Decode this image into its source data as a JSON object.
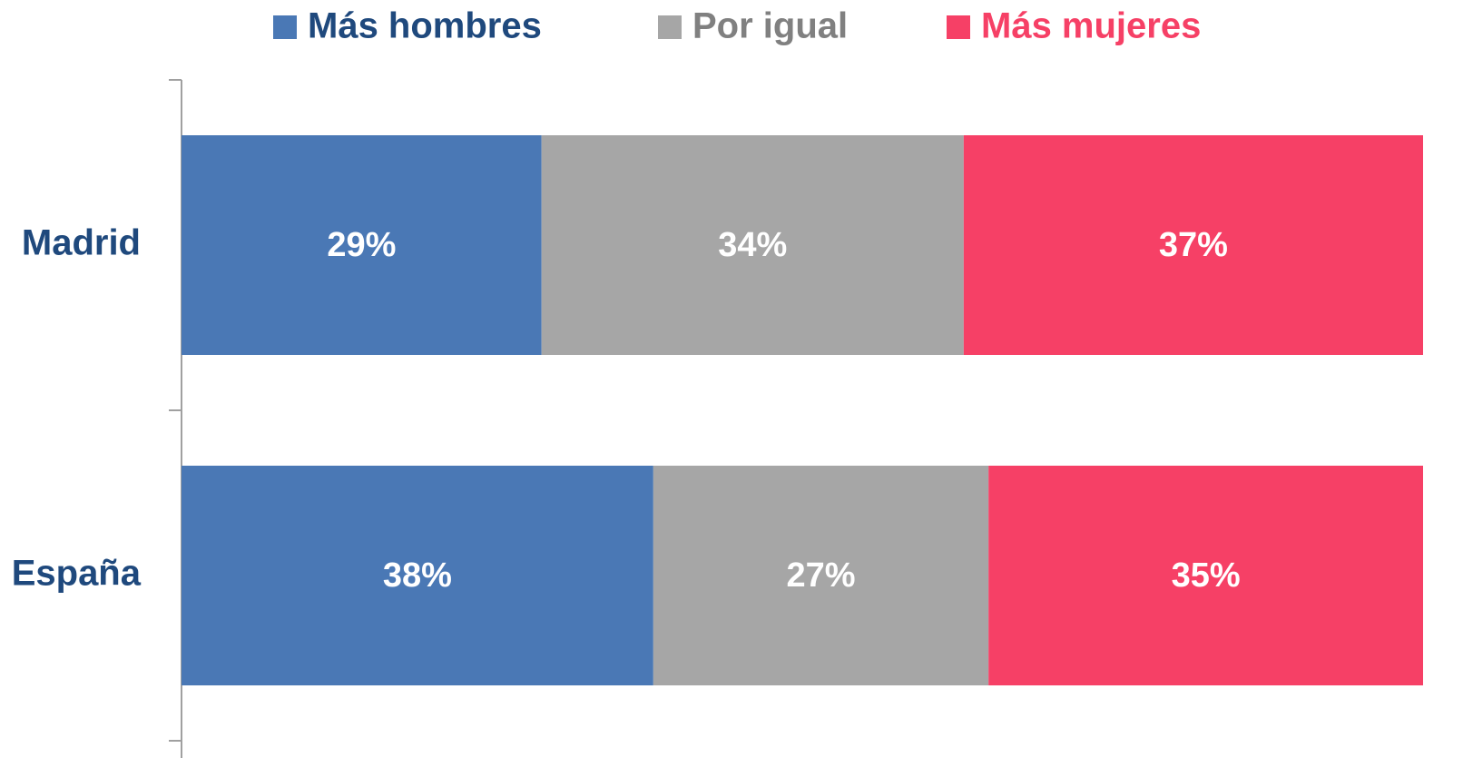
{
  "chart_data": {
    "type": "bar",
    "orientation": "horizontal",
    "stacked": true,
    "categories": [
      "Madrid",
      "España"
    ],
    "series": [
      {
        "name": "Más hombres",
        "color": "#4a78b5",
        "legend_text_color": "#1f497d",
        "values": [
          29,
          38
        ],
        "value_labels": [
          "29%",
          "38%"
        ]
      },
      {
        "name": "Por igual",
        "color": "#a6a6a6",
        "legend_text_color": "#808080",
        "values": [
          34,
          27
        ],
        "value_labels": [
          "34%",
          "27%"
        ]
      },
      {
        "name": "Más mujeres",
        "color": "#f64066",
        "legend_text_color": "#f64066",
        "values": [
          37,
          35
        ],
        "value_labels": [
          "37%",
          "35%"
        ]
      }
    ],
    "category_label_color": "#1f497d",
    "value_label_color": "#ffffff",
    "legend": "top"
  }
}
